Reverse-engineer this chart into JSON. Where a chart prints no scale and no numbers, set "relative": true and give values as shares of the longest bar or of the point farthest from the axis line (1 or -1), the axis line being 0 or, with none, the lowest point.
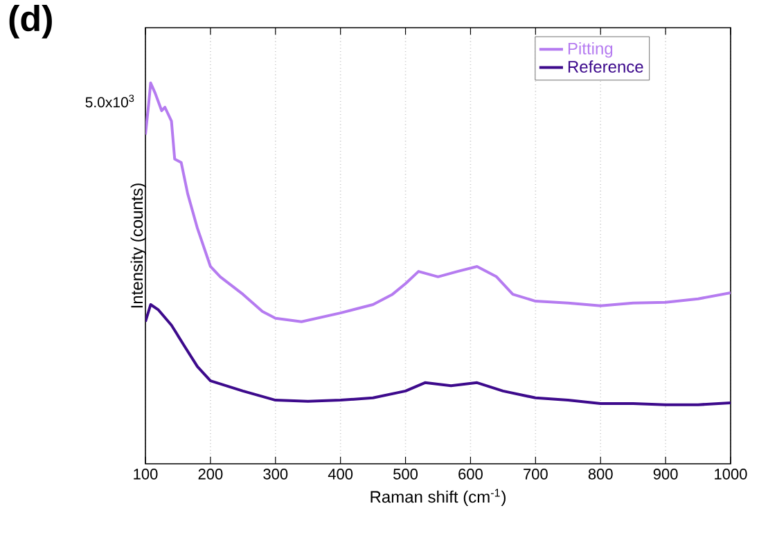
{
  "chart_data": {
    "type": "line",
    "relative": true,
    "xlabel": "Raman shift (cm$^{-1}$)",
    "ylabel": "Intensity (counts)",
    "annotations": [
      "**(d)**",
      "5.0x10$^{3}$"
    ],
    "xlim": [
      100,
      1000
    ],
    "xticks": [
      100,
      200,
      300,
      400,
      500,
      600,
      700,
      800,
      900,
      1000
    ],
    "grid": "x",
    "legend": "top right",
    "series": [
      {
        "name": "Pitting",
        "color": "#b57bf0",
        "x": [
          100,
          105,
          108,
          115,
          125,
          130,
          140,
          145,
          155,
          165,
          180,
          200,
          215,
          250,
          280,
          300,
          340,
          400,
          450,
          480,
          500,
          520,
          550,
          580,
          610,
          640,
          665,
          700,
          750,
          800,
          850,
          900,
          950,
          1000
        ],
        "values": [
          0.864,
          0.945,
          1.0,
          0.973,
          0.927,
          0.936,
          0.9,
          0.8,
          0.791,
          0.709,
          0.618,
          0.518,
          0.491,
          0.445,
          0.4,
          0.382,
          0.373,
          0.396,
          0.418,
          0.445,
          0.473,
          0.505,
          0.491,
          0.505,
          0.518,
          0.491,
          0.445,
          0.427,
          0.422,
          0.415,
          0.422,
          0.424,
          0.433,
          0.449
        ]
      },
      {
        "name": "Reference",
        "color": "#3d0a8c",
        "x": [
          100,
          108,
          120,
          140,
          160,
          180,
          200,
          250,
          300,
          350,
          400,
          450,
          500,
          530,
          570,
          610,
          650,
          700,
          750,
          800,
          850,
          900,
          950,
          1000
        ],
        "values": [
          0.373,
          0.418,
          0.404,
          0.364,
          0.309,
          0.255,
          0.218,
          0.191,
          0.167,
          0.164,
          0.167,
          0.173,
          0.191,
          0.213,
          0.205,
          0.213,
          0.191,
          0.173,
          0.167,
          0.158,
          0.158,
          0.155,
          0.155,
          0.16
        ]
      }
    ]
  }
}
